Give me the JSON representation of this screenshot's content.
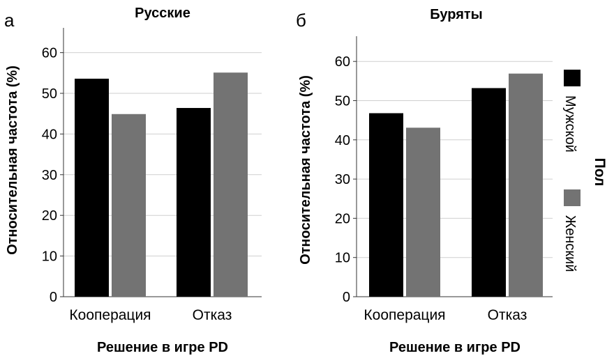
{
  "chart_data": [
    {
      "type": "bar",
      "panel_label": "а",
      "title": "Русские",
      "xlabel": "Решение в игре PD",
      "ylabel": "Относительная частота (%)",
      "ylim": [
        0,
        65
      ],
      "yticks": [
        0,
        10,
        20,
        30,
        40,
        50,
        60
      ],
      "grid": true,
      "categories": [
        "Кооперация",
        "Отказ"
      ],
      "series": [
        {
          "name": "Мужской",
          "color": "#000000",
          "values": [
            53.6,
            46.4
          ]
        },
        {
          "name": "Женский",
          "color": "#737373",
          "values": [
            44.9,
            55.1
          ]
        }
      ]
    },
    {
      "type": "bar",
      "panel_label": "б",
      "title": "Буряты",
      "xlabel": "Решение в игре PD",
      "ylabel": "Относительная частота (%)",
      "ylim": [
        0,
        66
      ],
      "yticks": [
        0,
        10,
        20,
        30,
        40,
        50,
        60
      ],
      "grid": true,
      "categories": [
        "Кооперация",
        "Отказ"
      ],
      "series": [
        {
          "name": "Мужской",
          "color": "#000000",
          "values": [
            46.8,
            53.2
          ]
        },
        {
          "name": "Женский",
          "color": "#737373",
          "values": [
            43.1,
            56.9
          ]
        }
      ]
    }
  ],
  "legend": {
    "title": "Пол",
    "placement": "right",
    "items": [
      {
        "label": "Мужской",
        "color": "#000000"
      },
      {
        "label": "Женский",
        "color": "#737373"
      }
    ]
  }
}
